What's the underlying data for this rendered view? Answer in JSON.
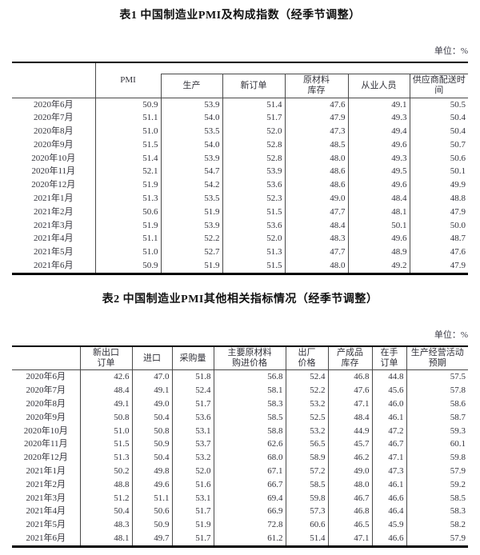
{
  "table1": {
    "title": "表1 中国制造业PMI及构成指数（经季节调整）",
    "unit": "单位：%",
    "columns": [
      "PMI",
      "生产",
      "新订单",
      "原材料\n库存",
      "从业人员",
      "供应商配送时\n间"
    ],
    "rows": [
      {
        "month": "2020年6月",
        "values": [
          "50.9",
          "53.9",
          "51.4",
          "47.6",
          "49.1",
          "50.5"
        ]
      },
      {
        "month": "2020年7月",
        "values": [
          "51.1",
          "54.0",
          "51.7",
          "47.9",
          "49.3",
          "50.4"
        ]
      },
      {
        "month": "2020年8月",
        "values": [
          "51.0",
          "53.5",
          "52.0",
          "47.3",
          "49.4",
          "50.4"
        ]
      },
      {
        "month": "2020年9月",
        "values": [
          "51.5",
          "54.0",
          "52.8",
          "48.5",
          "49.6",
          "50.7"
        ]
      },
      {
        "month": "2020年10月",
        "values": [
          "51.4",
          "53.9",
          "52.8",
          "48.0",
          "49.3",
          "50.6"
        ]
      },
      {
        "month": "2020年11月",
        "values": [
          "52.1",
          "54.7",
          "53.9",
          "48.6",
          "49.5",
          "50.1"
        ]
      },
      {
        "month": "2020年12月",
        "values": [
          "51.9",
          "54.2",
          "53.6",
          "48.6",
          "49.6",
          "49.9"
        ]
      },
      {
        "month": "2021年1月",
        "values": [
          "51.3",
          "53.5",
          "52.3",
          "49.0",
          "48.4",
          "48.8"
        ]
      },
      {
        "month": "2021年2月",
        "values": [
          "50.6",
          "51.9",
          "51.5",
          "47.7",
          "48.1",
          "47.9"
        ]
      },
      {
        "month": "2021年3月",
        "values": [
          "51.9",
          "53.9",
          "53.6",
          "48.4",
          "50.1",
          "50.0"
        ]
      },
      {
        "month": "2021年4月",
        "values": [
          "51.1",
          "52.2",
          "52.0",
          "48.3",
          "49.6",
          "48.7"
        ]
      },
      {
        "month": "2021年5月",
        "values": [
          "51.0",
          "52.7",
          "51.3",
          "47.7",
          "48.9",
          "47.6"
        ]
      },
      {
        "month": "2021年6月",
        "values": [
          "50.9",
          "51.9",
          "51.5",
          "48.0",
          "49.2",
          "47.9"
        ]
      }
    ]
  },
  "table2": {
    "title": "表2 中国制造业PMI其他相关指标情况（经季节调整）",
    "unit": "单位：%",
    "columns": [
      "新出口\n订单",
      "进口",
      "采购量",
      "主要原材料\n购进价格",
      "出厂\n价格",
      "产成品\n库存",
      "在手\n订单",
      "生产经营活动\n预期"
    ],
    "rows": [
      {
        "month": "2020年6月",
        "values": [
          "42.6",
          "47.0",
          "51.8",
          "56.8",
          "52.4",
          "46.8",
          "44.8",
          "57.5"
        ]
      },
      {
        "month": "2020年7月",
        "values": [
          "48.4",
          "49.1",
          "52.4",
          "58.1",
          "52.2",
          "47.6",
          "45.6",
          "57.8"
        ]
      },
      {
        "month": "2020年8月",
        "values": [
          "49.1",
          "49.0",
          "51.7",
          "58.3",
          "53.2",
          "47.1",
          "46.0",
          "58.6"
        ]
      },
      {
        "month": "2020年9月",
        "values": [
          "50.8",
          "50.4",
          "53.6",
          "58.5",
          "52.5",
          "48.4",
          "46.1",
          "58.7"
        ]
      },
      {
        "month": "2020年10月",
        "values": [
          "51.0",
          "50.8",
          "53.1",
          "58.8",
          "53.2",
          "44.9",
          "47.2",
          "59.3"
        ]
      },
      {
        "month": "2020年11月",
        "values": [
          "51.5",
          "50.9",
          "53.7",
          "62.6",
          "56.5",
          "45.7",
          "46.7",
          "60.1"
        ]
      },
      {
        "month": "2020年12月",
        "values": [
          "51.3",
          "50.4",
          "53.2",
          "68.0",
          "58.9",
          "46.2",
          "47.1",
          "59.8"
        ]
      },
      {
        "month": "2021年1月",
        "values": [
          "50.2",
          "49.8",
          "52.0",
          "67.1",
          "57.2",
          "49.0",
          "47.3",
          "57.9"
        ]
      },
      {
        "month": "2021年2月",
        "values": [
          "48.8",
          "49.6",
          "51.6",
          "66.7",
          "58.5",
          "48.0",
          "46.1",
          "59.2"
        ]
      },
      {
        "month": "2021年3月",
        "values": [
          "51.2",
          "51.1",
          "53.1",
          "69.4",
          "59.8",
          "46.7",
          "46.6",
          "58.5"
        ]
      },
      {
        "month": "2021年4月",
        "values": [
          "50.4",
          "50.6",
          "51.7",
          "66.9",
          "57.3",
          "46.8",
          "46.4",
          "58.3"
        ]
      },
      {
        "month": "2021年5月",
        "values": [
          "48.3",
          "50.9",
          "51.9",
          "72.8",
          "60.6",
          "46.5",
          "45.9",
          "58.2"
        ]
      },
      {
        "month": "2021年6月",
        "values": [
          "48.1",
          "49.7",
          "51.7",
          "61.2",
          "51.4",
          "47.1",
          "46.6",
          "57.9"
        ]
      }
    ]
  },
  "layout": {
    "table1_col_widths": [
      104,
      82,
      77,
      78,
      79,
      77,
      73
    ],
    "table2_col_widths": [
      85,
      65,
      50,
      52,
      90,
      53,
      55,
      43,
      77
    ]
  }
}
